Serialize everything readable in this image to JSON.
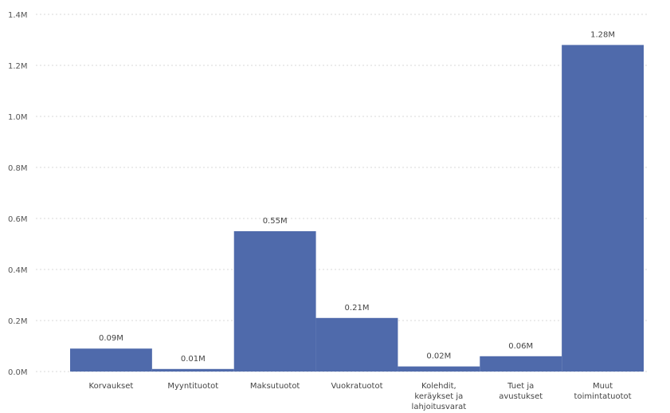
{
  "chart_data": {
    "type": "bar",
    "title": "",
    "xlabel": "",
    "ylabel": "",
    "categories": [
      [
        "Korvaukset"
      ],
      [
        "Myyntituotot"
      ],
      [
        "Maksutuotot"
      ],
      [
        "Vuokratuotot"
      ],
      [
        "Kolehdit,",
        "keräykset ja",
        "lahjoitusvarat"
      ],
      [
        "Tuet ja",
        "avustukset"
      ],
      [
        "Muut",
        "toimintatuotot"
      ]
    ],
    "values": [
      0.09,
      0.01,
      0.55,
      0.21,
      0.02,
      0.06,
      1.28
    ],
    "value_labels": [
      "0.09M",
      "0.01M",
      "0.55M",
      "0.21M",
      "0.02M",
      "0.06M",
      "1.28M"
    ],
    "y_ticks": [
      0,
      0.2,
      0.4,
      0.6,
      0.8,
      1.0,
      1.2,
      1.4
    ],
    "y_tick_labels": [
      "0.0M",
      "0.2M",
      "0.4M",
      "0.6M",
      "0.8M",
      "1.0M",
      "1.2M",
      "1.4M"
    ],
    "ylim": [
      0,
      1.4
    ],
    "grid": true,
    "bar_color": "#4f6aab"
  }
}
